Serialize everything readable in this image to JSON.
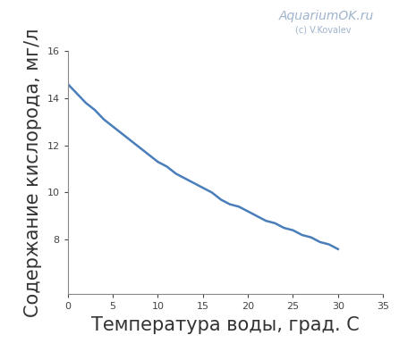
{
  "chart_data": {
    "type": "line",
    "x_label": "Температура воды, град. С",
    "y_label": "Содержание кислорода, мг/л",
    "annotations": [
      "AquariumOK.ru",
      "(c) V.Kovalev"
    ],
    "x": [
      0,
      1,
      2,
      3,
      4,
      5,
      6,
      7,
      8,
      9,
      10,
      11,
      12,
      13,
      14,
      15,
      16,
      17,
      18,
      19,
      20,
      21,
      22,
      23,
      24,
      25,
      26,
      27,
      28,
      29,
      30
    ],
    "values": [
      14.6,
      14.2,
      13.8,
      13.5,
      13.1,
      12.8,
      12.5,
      12.2,
      11.9,
      11.6,
      11.3,
      11.1,
      10.8,
      10.6,
      10.4,
      10.2,
      10.0,
      9.7,
      9.5,
      9.4,
      9.2,
      9.0,
      8.8,
      8.7,
      8.5,
      8.4,
      8.2,
      8.1,
      7.9,
      7.8,
      7.6
    ],
    "color": "#4a7ebb",
    "xlim": [
      0,
      35
    ],
    "xticks": [
      0,
      5,
      10,
      15,
      20,
      25,
      30,
      35
    ],
    "ylim": [
      5.7,
      16
    ],
    "yticks": [
      8,
      10,
      12,
      14,
      16
    ],
    "grid": false
  }
}
